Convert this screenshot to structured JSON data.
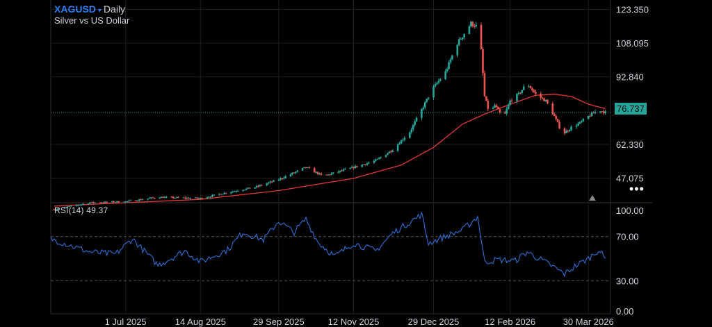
{
  "header": {
    "symbol": "XAGUSD",
    "dropdown_glyph": "▾",
    "timeframe": "Daily",
    "description": "Silver vs US Dollar"
  },
  "price_axis": {
    "ticks": [
      "123.350",
      "108.095",
      "92.840",
      "62.330",
      "47.075"
    ],
    "last_price": "76.737"
  },
  "rsi": {
    "label": "RSI(14)",
    "value": "49.37",
    "ticks": [
      "100.00",
      "70.00",
      "30.00",
      "0.00"
    ]
  },
  "time_axis": {
    "ticks": [
      "1 Jul 2025",
      "14 Aug 2025",
      "29 Sep 2025",
      "12 Nov 2025",
      "29 Dec 2025",
      "12 Feb 2026",
      "30 Mar 2026"
    ]
  },
  "menu_glyph": "•••",
  "colors": {
    "up": "#26a69a",
    "down": "#ef5350",
    "ma": "#e53935",
    "rsi_line": "#2f6fd6",
    "grid": "#1e1e1e",
    "last_price_line": "#26a69a",
    "link": "#2f7cf6"
  },
  "chart_data": {
    "type": "candlestick",
    "symbol": "XAGUSD",
    "interval": "Daily",
    "price_ylim": [
      36,
      126
    ],
    "x_range": [
      "2025-05-18",
      "2026-04-12"
    ],
    "last_price": 76.737,
    "candles": [
      {
        "date": "2025-05-20",
        "close": 33.0
      },
      {
        "date": "2025-06-10",
        "close": 36.0
      },
      {
        "date": "2025-07-01",
        "close": 36.5
      },
      {
        "date": "2025-07-20",
        "close": 38.5
      },
      {
        "date": "2025-08-14",
        "close": 38.0
      },
      {
        "date": "2025-09-01",
        "close": 41.0
      },
      {
        "date": "2025-09-15",
        "close": 43.0
      },
      {
        "date": "2025-09-29",
        "close": 46.5
      },
      {
        "date": "2025-10-15",
        "close": 52.0
      },
      {
        "date": "2025-10-25",
        "close": 48.0
      },
      {
        "date": "2025-11-12",
        "close": 52.0
      },
      {
        "date": "2025-11-25",
        "close": 55.0
      },
      {
        "date": "2025-12-05",
        "close": 60.0
      },
      {
        "date": "2025-12-15",
        "close": 68.0
      },
      {
        "date": "2025-12-22",
        "close": 78.0
      },
      {
        "date": "2025-12-26",
        "close": 84.0
      },
      {
        "date": "2025-12-29",
        "close": 88.0
      },
      {
        "date": "2026-01-05",
        "close": 95.0
      },
      {
        "date": "2026-01-12",
        "close": 108.0
      },
      {
        "date": "2026-01-20",
        "close": 117.0
      },
      {
        "date": "2026-01-25",
        "close": 115.0
      },
      {
        "date": "2026-01-28",
        "close": 84.0
      },
      {
        "date": "2026-01-31",
        "close": 76.0
      },
      {
        "date": "2026-02-03",
        "close": 80.0
      },
      {
        "date": "2026-02-08",
        "close": 74.0
      },
      {
        "date": "2026-02-12",
        "close": 82.0
      },
      {
        "date": "2026-02-17",
        "close": 85.0
      },
      {
        "date": "2026-02-22",
        "close": 90.0
      },
      {
        "date": "2026-02-27",
        "close": 85.0
      },
      {
        "date": "2026-03-05",
        "close": 82.0
      },
      {
        "date": "2026-03-10",
        "close": 75.0
      },
      {
        "date": "2026-03-15",
        "close": 67.0
      },
      {
        "date": "2026-03-20",
        "close": 70.0
      },
      {
        "date": "2026-03-25",
        "close": 72.0
      },
      {
        "date": "2026-03-30",
        "close": 75.0
      },
      {
        "date": "2026-04-05",
        "close": 78.0
      },
      {
        "date": "2026-04-09",
        "close": 76.737
      }
    ],
    "moving_average": [
      {
        "date": "2025-05-20",
        "value": 34.5
      },
      {
        "date": "2025-07-01",
        "value": 36.0
      },
      {
        "date": "2025-08-14",
        "value": 37.5
      },
      {
        "date": "2025-09-29",
        "value": 41.5
      },
      {
        "date": "2025-11-12",
        "value": 47.0
      },
      {
        "date": "2025-12-10",
        "value": 53.0
      },
      {
        "date": "2025-12-29",
        "value": 61.0
      },
      {
        "date": "2026-01-15",
        "value": 71.5
      },
      {
        "date": "2026-01-28",
        "value": 76.0
      },
      {
        "date": "2026-02-12",
        "value": 80.5
      },
      {
        "date": "2026-02-27",
        "value": 84.5
      },
      {
        "date": "2026-03-10",
        "value": 85.0
      },
      {
        "date": "2026-03-20",
        "value": 84.0
      },
      {
        "date": "2026-03-30",
        "value": 80.5
      },
      {
        "date": "2026-04-09",
        "value": 78.5
      }
    ],
    "rsi_ylim": [
      0,
      100
    ],
    "rsi_levels": [
      70,
      30
    ],
    "rsi": [
      {
        "date": "2025-05-18",
        "value": 68
      },
      {
        "date": "2025-06-10",
        "value": 56
      },
      {
        "date": "2025-06-25",
        "value": 54
      },
      {
        "date": "2025-07-05",
        "value": 68
      },
      {
        "date": "2025-07-20",
        "value": 44
      },
      {
        "date": "2025-08-05",
        "value": 57
      },
      {
        "date": "2025-08-14",
        "value": 47
      },
      {
        "date": "2025-08-30",
        "value": 58
      },
      {
        "date": "2025-09-08",
        "value": 74
      },
      {
        "date": "2025-09-20",
        "value": 67
      },
      {
        "date": "2025-09-29",
        "value": 84
      },
      {
        "date": "2025-10-08",
        "value": 74
      },
      {
        "date": "2025-10-15",
        "value": 86
      },
      {
        "date": "2025-10-22",
        "value": 65
      },
      {
        "date": "2025-11-01",
        "value": 52
      },
      {
        "date": "2025-11-12",
        "value": 64
      },
      {
        "date": "2025-11-25",
        "value": 57
      },
      {
        "date": "2025-12-05",
        "value": 73
      },
      {
        "date": "2025-12-15",
        "value": 83
      },
      {
        "date": "2025-12-22",
        "value": 90
      },
      {
        "date": "2025-12-26",
        "value": 64
      },
      {
        "date": "2026-01-05",
        "value": 70
      },
      {
        "date": "2026-01-15",
        "value": 76
      },
      {
        "date": "2026-01-24",
        "value": 88
      },
      {
        "date": "2026-01-28",
        "value": 47
      },
      {
        "date": "2026-02-05",
        "value": 49
      },
      {
        "date": "2026-02-15",
        "value": 48
      },
      {
        "date": "2026-02-22",
        "value": 56
      },
      {
        "date": "2026-03-01",
        "value": 50
      },
      {
        "date": "2026-03-10",
        "value": 42
      },
      {
        "date": "2026-03-16",
        "value": 36
      },
      {
        "date": "2026-03-22",
        "value": 43
      },
      {
        "date": "2026-03-30",
        "value": 50
      },
      {
        "date": "2026-04-05",
        "value": 58
      },
      {
        "date": "2026-04-09",
        "value": 49.37
      }
    ]
  }
}
